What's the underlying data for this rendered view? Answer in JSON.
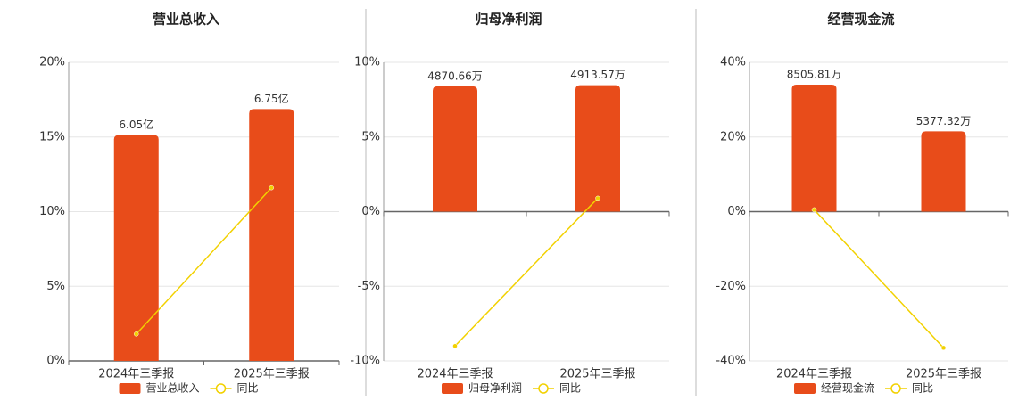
{
  "chart_data": [
    {
      "type": "bar",
      "title": "营业总收入",
      "categories": [
        "2024年三季报",
        "2025年三季报"
      ],
      "ylim": [
        0,
        20
      ],
      "yticks": [
        {
          "value": 0,
          "label": "0%"
        },
        {
          "value": 5,
          "label": "5%"
        },
        {
          "value": 10,
          "label": "10%"
        },
        {
          "value": 15,
          "label": "15%"
        },
        {
          "value": 20,
          "label": "20%"
        }
      ],
      "y2lim": [
        0,
        8
      ],
      "grid": true,
      "series": [
        {
          "name": "营业总收入",
          "color": "#e84c1a",
          "axis": "y2",
          "values": [
            6.05,
            6.75
          ],
          "value_labels": [
            "6.05亿",
            "6.75亿"
          ]
        },
        {
          "name": "同比",
          "color": "#f2d100",
          "values": [
            1.8,
            11.6
          ]
        }
      ]
    },
    {
      "type": "bar",
      "title": "归母净利润",
      "categories": [
        "2024年三季报",
        "2025年三季报"
      ],
      "ylim": [
        -10,
        10
      ],
      "yticks": [
        {
          "value": -10,
          "label": "-10%"
        },
        {
          "value": -5,
          "label": "-5%"
        },
        {
          "value": 0,
          "label": "0%"
        },
        {
          "value": 5,
          "label": "5%"
        },
        {
          "value": 10,
          "label": "10%"
        }
      ],
      "y2lim": [
        -5800,
        5800
      ],
      "grid": true,
      "series": [
        {
          "name": "归母净利润",
          "color": "#e84c1a",
          "axis": "y2",
          "values": [
            4870.66,
            4913.57
          ],
          "value_labels": [
            "4870.66万",
            "4913.57万"
          ]
        },
        {
          "name": "同比",
          "color": "#f2d100",
          "values": [
            -9.0,
            0.9
          ]
        }
      ]
    },
    {
      "type": "bar",
      "title": "经营现金流",
      "categories": [
        "2024年三季报",
        "2025年三季报"
      ],
      "ylim": [
        -40,
        40
      ],
      "yticks": [
        {
          "value": -40,
          "label": "-40%"
        },
        {
          "value": -20,
          "label": "-20%"
        },
        {
          "value": 0,
          "label": "0%"
        },
        {
          "value": 20,
          "label": "20%"
        },
        {
          "value": 40,
          "label": "40%"
        }
      ],
      "y2lim": [
        -10000,
        10000
      ],
      "grid": true,
      "series": [
        {
          "name": "经营现金流",
          "color": "#e84c1a",
          "axis": "y2",
          "values": [
            8505.81,
            5377.32
          ],
          "value_labels": [
            "8505.81万",
            "5377.32万"
          ]
        },
        {
          "name": "同比",
          "color": "#f2d100",
          "values": [
            0.5,
            -36.5
          ]
        }
      ]
    }
  ]
}
